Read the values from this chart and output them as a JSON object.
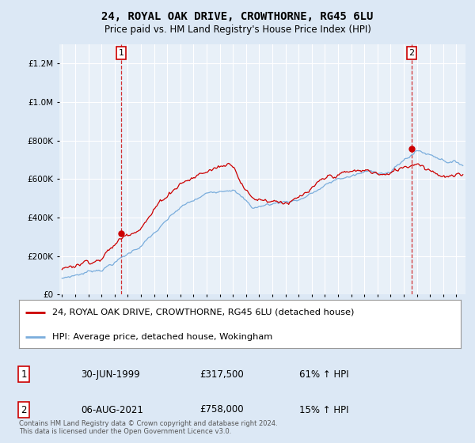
{
  "title": "24, ROYAL OAK DRIVE, CROWTHORNE, RG45 6LU",
  "subtitle": "Price paid vs. HM Land Registry's House Price Index (HPI)",
  "legend_line1": "24, ROYAL OAK DRIVE, CROWTHORNE, RG45 6LU (detached house)",
  "legend_line2": "HPI: Average price, detached house, Wokingham",
  "annotation1_label": "1",
  "annotation1_date": "30-JUN-1999",
  "annotation1_price": "£317,500",
  "annotation1_pct": "61% ↑ HPI",
  "annotation2_label": "2",
  "annotation2_date": "06-AUG-2021",
  "annotation2_price": "£758,000",
  "annotation2_pct": "15% ↑ HPI",
  "footnote": "Contains HM Land Registry data © Crown copyright and database right 2024.\nThis data is licensed under the Open Government Licence v3.0.",
  "sale1_year": 1999.5,
  "sale1_price": 317500,
  "sale2_year": 2021.6,
  "sale2_price": 758000,
  "red_color": "#cc0000",
  "blue_color": "#7aaddc",
  "bg_color": "#dce8f5",
  "plot_bg": "#e8f0f8",
  "grid_color": "#ffffff",
  "ylim": [
    0,
    1300000
  ],
  "yticks": [
    0,
    200000,
    400000,
    600000,
    800000,
    1000000,
    1200000
  ],
  "xstart": 1995,
  "xend": 2025
}
